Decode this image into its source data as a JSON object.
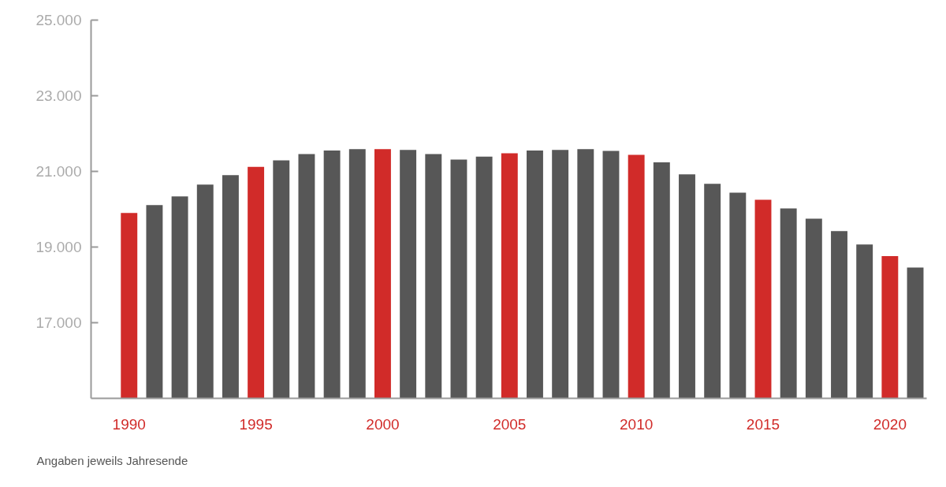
{
  "chart_data": {
    "type": "bar",
    "categories": [
      "1990",
      null,
      null,
      null,
      null,
      "1995",
      null,
      null,
      null,
      null,
      "2000",
      null,
      null,
      null,
      null,
      "2005",
      null,
      null,
      null,
      null,
      "2010",
      null,
      null,
      null,
      null,
      "2015",
      null,
      null,
      null,
      null,
      "2020",
      null
    ],
    "values": [
      19900,
      20110,
      20340,
      20650,
      20900,
      21120,
      21290,
      21460,
      21550,
      21590,
      21590,
      21570,
      21460,
      21310,
      21390,
      21480,
      21550,
      21570,
      21590,
      21540,
      21440,
      21240,
      20920,
      20670,
      20440,
      20250,
      20020,
      19750,
      19420,
      19070,
      18760,
      18460
    ],
    "colors": [
      "#d12b29",
      "#575757",
      "#575757",
      "#575757",
      "#575757",
      "#d12b29",
      "#575757",
      "#575757",
      "#575757",
      "#575757",
      "#d12b29",
      "#575757",
      "#575757",
      "#575757",
      "#575757",
      "#d12b29",
      "#575757",
      "#575757",
      "#575757",
      "#575757",
      "#d12b29",
      "#575757",
      "#575757",
      "#575757",
      "#575757",
      "#d12b29",
      "#575757",
      "#575757",
      "#575757",
      "#575757",
      "#d12b29",
      "#575757"
    ],
    "ylim": [
      15000,
      25000
    ],
    "yticks": [
      {
        "value": 17000,
        "label": "17.000"
      },
      {
        "value": 19000,
        "label": "19.000"
      },
      {
        "value": 21000,
        "label": "21.000"
      },
      {
        "value": 23000,
        "label": "23.000"
      },
      {
        "value": 25000,
        "label": "25.000"
      }
    ],
    "annotations": [
      "Angaben jeweils Jahresende"
    ]
  }
}
